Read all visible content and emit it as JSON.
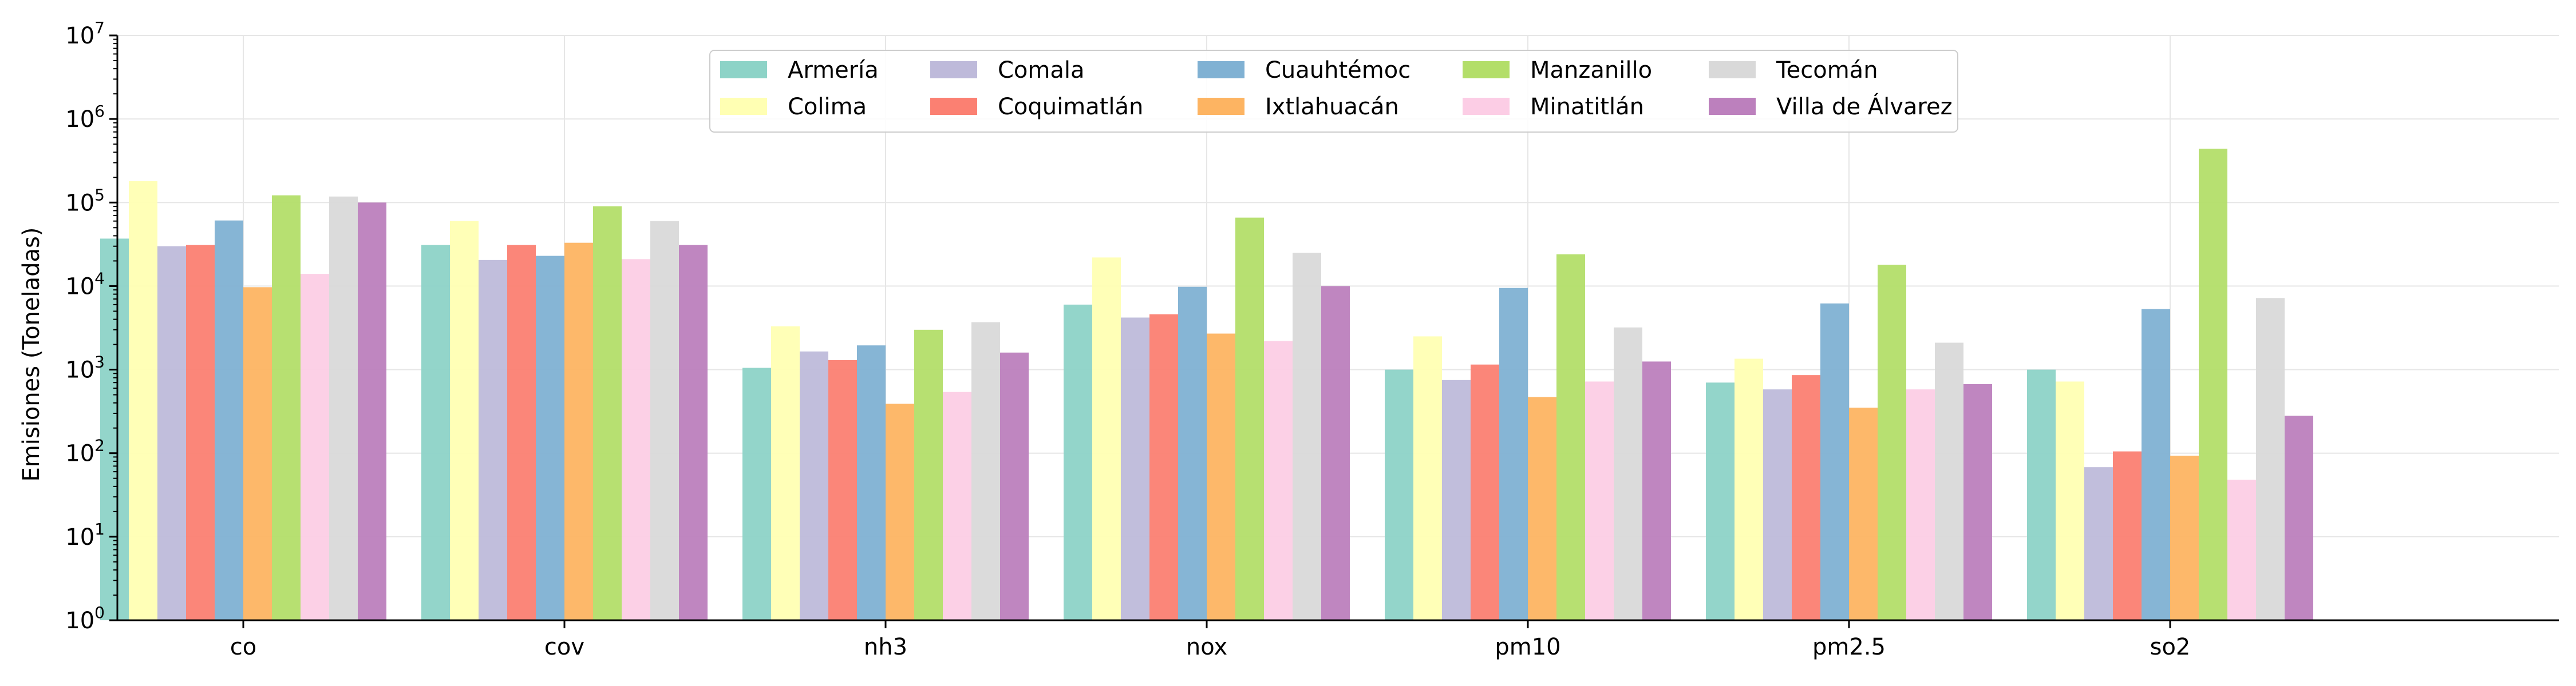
{
  "chart_data": {
    "type": "bar",
    "title": "",
    "xlabel": "",
    "ylabel": "Emisiones (Toneladas)",
    "yscale": "log",
    "ylim": [
      1,
      10000000
    ],
    "grid": true,
    "legend_position": "top-center",
    "categories": [
      "co",
      "cov",
      "nh3",
      "nox",
      "pm10",
      "pm2.5",
      "so2"
    ],
    "series": [
      {
        "name": "Armería",
        "color": "#8dd3c7",
        "values": [
          37000,
          31000,
          1050,
          6000,
          1000,
          700,
          1000
        ]
      },
      {
        "name": "Colima",
        "color": "#ffffb3",
        "values": [
          180000,
          60000,
          3300,
          22000,
          2500,
          1350,
          720
        ]
      },
      {
        "name": "Comala",
        "color": "#bebada",
        "values": [
          30000,
          20500,
          1650,
          4200,
          750,
          580,
          68
        ]
      },
      {
        "name": "Coquimatlán",
        "color": "#fb8072",
        "values": [
          31000,
          31000,
          1300,
          4600,
          1150,
          860,
          105
        ]
      },
      {
        "name": "Cuauhtémoc",
        "color": "#80b1d3",
        "values": [
          61000,
          23000,
          1950,
          9800,
          9500,
          6200,
          5300
        ]
      },
      {
        "name": "Ixtlahuacán",
        "color": "#fdb462",
        "values": [
          9700,
          33000,
          390,
          2700,
          470,
          350,
          93
        ]
      },
      {
        "name": "Manzanillo",
        "color": "#b3de69",
        "values": [
          122000,
          90000,
          3000,
          66000,
          24000,
          18000,
          440000
        ]
      },
      {
        "name": "Minatitlán",
        "color": "#fccde5",
        "values": [
          14000,
          21000,
          540,
          2200,
          720,
          580,
          48
        ]
      },
      {
        "name": "Tecomán",
        "color": "#d9d9d9",
        "values": [
          118000,
          60000,
          3700,
          25000,
          3200,
          2100,
          7200
        ]
      },
      {
        "name": "Villa de Álvarez",
        "color": "#bc80bd",
        "values": [
          100000,
          31000,
          1600,
          10000,
          1250,
          670,
          280
        ]
      }
    ]
  }
}
